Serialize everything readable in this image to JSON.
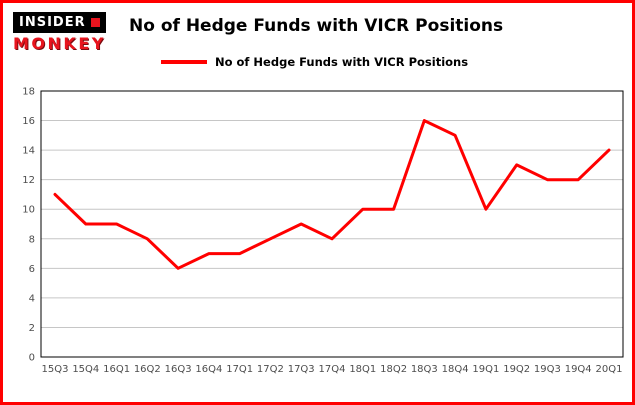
{
  "logo": {
    "line1": "INSIDER",
    "line2": "MONKEY"
  },
  "header": {
    "title": "No of Hedge Funds with VICR Positions"
  },
  "legend": {
    "label": "No of Hedge Funds with VICR Positions",
    "color": "#ff0000"
  },
  "colors": {
    "frame_border": "#ff0000",
    "line": "#ff0000",
    "grid": "#c6c6c6",
    "axis": "#000000",
    "tick_text": "#4d4d4d"
  },
  "chart_data": {
    "type": "line",
    "title": "No of Hedge Funds with VICR Positions",
    "categories": [
      "15Q3",
      "15Q4",
      "16Q1",
      "16Q2",
      "16Q3",
      "16Q4",
      "17Q1",
      "17Q2",
      "17Q3",
      "17Q4",
      "18Q1",
      "18Q2",
      "18Q3",
      "18Q4",
      "19Q1",
      "19Q2",
      "19Q3",
      "19Q4",
      "20Q1"
    ],
    "values": [
      11,
      9,
      9,
      8,
      6,
      7,
      7,
      8,
      9,
      8,
      10,
      10,
      16,
      15,
      10,
      13,
      12,
      12,
      14
    ],
    "xlabel": "",
    "ylabel": "",
    "ylim": [
      0,
      18
    ],
    "yticks": [
      0,
      2,
      4,
      6,
      8,
      10,
      12,
      14,
      16,
      18
    ],
    "ytick_step": 2,
    "grid": true,
    "legend_position": "top-left",
    "line_color": "#ff0000"
  }
}
